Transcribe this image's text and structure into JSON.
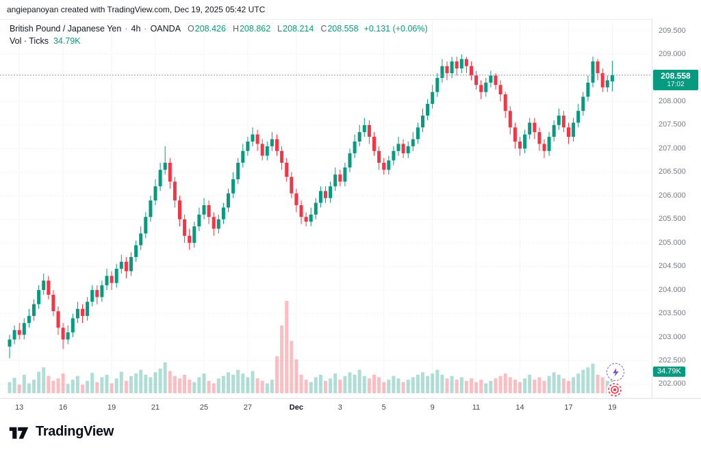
{
  "attribution": "angiepanoyan created with TradingView.com, Dec 19, 2025 05:42 UTC",
  "legend": {
    "title": "British Pound / Japanese Yen",
    "sep": "·",
    "interval": "4h",
    "exchange": "OANDA",
    "o_label": "O",
    "o": "208.426",
    "h_label": "H",
    "h": "208.862",
    "l_label": "L",
    "l": "208.214",
    "c_label": "C",
    "c": "208.558",
    "change": "+0.131 (+0.06%)",
    "vol_label": "Vol · Ticks",
    "vol_value": "34.79K"
  },
  "price_axis": {
    "badge_price": "208.558",
    "badge_time": "17:02",
    "volume_badge": "34.79K"
  },
  "logo": {
    "brand": "TradingView"
  },
  "icons": {
    "bolt_icon": "lightning-bolt",
    "target_icon": "record-target-dot",
    "logo_icon": "tradingview-mark"
  },
  "colors": {
    "up": "#089981",
    "down": "#f23645",
    "vol_up": "rgba(8,153,129,0.32)",
    "vol_down": "rgba(242,54,69,0.32)",
    "badge": "#089981",
    "axis_text": "#787b86",
    "grid": "#e7e9ee",
    "price_line": "#9598a1"
  },
  "chart_data": {
    "type": "candlestick",
    "title": "British Pound / Japanese Yen · 4h · OANDA",
    "symbol": "GBP/JPY",
    "interval": "4h",
    "exchange": "OANDA",
    "legend_position": "top-left",
    "grid": "faint-dotted",
    "y_range": [
      201.75,
      209.75
    ],
    "last_ohlc": {
      "open": 208.426,
      "high": 208.862,
      "low": 208.214,
      "close": 208.558,
      "change": "+0.131",
      "change_pct": "+0.06%"
    },
    "countdown": "17:02",
    "last_volume_label": "34.79K",
    "price_ticks": [
      209.5,
      209.0,
      208.5,
      208.0,
      207.5,
      207.0,
      206.5,
      206.0,
      205.5,
      205.0,
      204.5,
      204.0,
      203.5,
      203.0,
      202.5,
      202.0
    ],
    "time_ticks": [
      {
        "label": "13",
        "i": 2
      },
      {
        "label": "16",
        "i": 11
      },
      {
        "label": "19",
        "i": 21
      },
      {
        "label": "21",
        "i": 30
      },
      {
        "label": "25",
        "i": 40
      },
      {
        "label": "27",
        "i": 49
      },
      {
        "label": "Dec",
        "i": 59,
        "major": true
      },
      {
        "label": "3",
        "i": 68
      },
      {
        "label": "5",
        "i": 77
      },
      {
        "label": "9",
        "i": 87
      },
      {
        "label": "11",
        "i": 96
      },
      {
        "label": "14",
        "i": 105
      },
      {
        "label": "17",
        "i": 115
      },
      {
        "label": "19",
        "i": 124
      }
    ],
    "candles": [
      [
        202.8,
        203.05,
        202.55,
        202.95
      ],
      [
        202.95,
        203.25,
        202.85,
        203.15
      ],
      [
        203.15,
        203.3,
        202.95,
        203.05
      ],
      [
        203.05,
        203.4,
        202.95,
        203.3
      ],
      [
        203.3,
        203.6,
        203.2,
        203.45
      ],
      [
        203.45,
        203.8,
        203.35,
        203.7
      ],
      [
        203.7,
        204.1,
        203.6,
        204.0
      ],
      [
        204.0,
        204.35,
        203.9,
        204.2
      ],
      [
        204.2,
        204.3,
        203.8,
        203.9
      ],
      [
        203.9,
        204.0,
        203.45,
        203.55
      ],
      [
        203.55,
        203.65,
        203.05,
        203.2
      ],
      [
        203.2,
        203.3,
        202.75,
        202.95
      ],
      [
        202.95,
        203.25,
        202.85,
        203.1
      ],
      [
        203.1,
        203.5,
        203.0,
        203.4
      ],
      [
        203.4,
        203.75,
        203.3,
        203.6
      ],
      [
        203.6,
        203.7,
        203.3,
        203.45
      ],
      [
        203.45,
        203.85,
        203.35,
        203.75
      ],
      [
        203.75,
        204.1,
        203.65,
        204.0
      ],
      [
        204.0,
        204.1,
        203.7,
        203.85
      ],
      [
        203.85,
        204.2,
        203.75,
        204.1
      ],
      [
        204.1,
        204.45,
        204.0,
        204.3
      ],
      [
        204.3,
        204.4,
        204.0,
        204.15
      ],
      [
        204.15,
        204.55,
        204.05,
        204.45
      ],
      [
        204.45,
        204.75,
        204.35,
        204.6
      ],
      [
        204.6,
        204.7,
        204.25,
        204.4
      ],
      [
        204.4,
        204.8,
        204.3,
        204.7
      ],
      [
        204.7,
        205.05,
        204.6,
        204.95
      ],
      [
        204.95,
        205.35,
        204.85,
        205.2
      ],
      [
        205.2,
        205.65,
        205.1,
        205.55
      ],
      [
        205.55,
        206.0,
        205.45,
        205.9
      ],
      [
        205.9,
        206.35,
        205.8,
        206.2
      ],
      [
        206.2,
        206.7,
        206.1,
        206.55
      ],
      [
        206.55,
        207.05,
        206.45,
        206.7
      ],
      [
        206.7,
        206.8,
        206.15,
        206.3
      ],
      [
        206.3,
        206.4,
        205.75,
        205.9
      ],
      [
        205.9,
        206.0,
        205.35,
        205.5
      ],
      [
        205.5,
        205.6,
        205.0,
        205.15
      ],
      [
        205.15,
        205.3,
        204.85,
        205.0
      ],
      [
        205.0,
        205.45,
        204.9,
        205.35
      ],
      [
        205.35,
        205.75,
        205.25,
        205.6
      ],
      [
        205.6,
        205.95,
        205.5,
        205.8
      ],
      [
        205.8,
        205.9,
        205.4,
        205.55
      ],
      [
        205.55,
        205.65,
        205.15,
        205.3
      ],
      [
        205.3,
        205.6,
        205.2,
        205.5
      ],
      [
        205.5,
        205.85,
        205.4,
        205.75
      ],
      [
        205.75,
        206.15,
        205.65,
        206.05
      ],
      [
        206.05,
        206.5,
        205.95,
        206.35
      ],
      [
        206.35,
        206.8,
        206.25,
        206.7
      ],
      [
        206.7,
        207.1,
        206.6,
        206.95
      ],
      [
        206.95,
        207.25,
        206.85,
        207.15
      ],
      [
        207.15,
        207.45,
        207.05,
        207.3
      ],
      [
        207.3,
        207.4,
        206.95,
        207.1
      ],
      [
        207.1,
        207.2,
        206.75,
        206.85
      ],
      [
        206.85,
        207.15,
        206.75,
        207.05
      ],
      [
        207.05,
        207.35,
        206.95,
        207.2
      ],
      [
        207.2,
        207.3,
        206.85,
        206.95
      ],
      [
        206.95,
        207.05,
        206.55,
        206.7
      ],
      [
        206.7,
        206.8,
        206.3,
        206.4
      ],
      [
        206.4,
        206.5,
        205.95,
        206.05
      ],
      [
        206.05,
        206.15,
        205.65,
        205.8
      ],
      [
        205.8,
        205.9,
        205.4,
        205.55
      ],
      [
        205.55,
        205.65,
        205.35,
        205.45
      ],
      [
        205.45,
        205.75,
        205.35,
        205.6
      ],
      [
        205.6,
        205.95,
        205.5,
        205.85
      ],
      [
        205.85,
        206.2,
        205.75,
        206.1
      ],
      [
        206.1,
        206.2,
        205.85,
        205.95
      ],
      [
        205.95,
        206.3,
        205.85,
        206.2
      ],
      [
        206.2,
        206.6,
        206.1,
        206.45
      ],
      [
        206.45,
        206.55,
        206.2,
        206.3
      ],
      [
        206.3,
        206.7,
        206.2,
        206.6
      ],
      [
        206.6,
        207.0,
        206.5,
        206.9
      ],
      [
        206.9,
        207.3,
        206.8,
        207.15
      ],
      [
        207.15,
        207.5,
        207.05,
        207.35
      ],
      [
        207.35,
        207.65,
        207.25,
        207.5
      ],
      [
        207.5,
        207.6,
        207.1,
        207.25
      ],
      [
        207.25,
        207.35,
        206.85,
        206.95
      ],
      [
        206.95,
        207.05,
        206.55,
        206.7
      ],
      [
        206.7,
        206.8,
        206.45,
        206.55
      ],
      [
        206.55,
        206.85,
        206.45,
        206.75
      ],
      [
        206.75,
        207.05,
        206.65,
        206.95
      ],
      [
        206.95,
        207.25,
        206.85,
        207.1
      ],
      [
        207.1,
        207.2,
        206.8,
        206.9
      ],
      [
        206.9,
        207.15,
        206.8,
        207.05
      ],
      [
        207.05,
        207.35,
        206.95,
        207.2
      ],
      [
        207.2,
        207.55,
        207.1,
        207.45
      ],
      [
        207.45,
        207.85,
        207.35,
        207.7
      ],
      [
        207.7,
        208.05,
        207.6,
        207.95
      ],
      [
        207.95,
        208.35,
        207.85,
        208.2
      ],
      [
        208.2,
        208.6,
        208.1,
        208.5
      ],
      [
        208.5,
        208.9,
        208.4,
        208.75
      ],
      [
        208.75,
        208.85,
        208.45,
        208.6
      ],
      [
        208.6,
        208.95,
        208.5,
        208.85
      ],
      [
        208.85,
        208.95,
        208.55,
        208.7
      ],
      [
        208.7,
        209.0,
        208.6,
        208.9
      ],
      [
        208.9,
        208.95,
        208.6,
        208.75
      ],
      [
        208.75,
        208.85,
        208.45,
        208.55
      ],
      [
        208.55,
        208.65,
        208.25,
        208.35
      ],
      [
        208.35,
        208.45,
        208.05,
        208.2
      ],
      [
        208.2,
        208.5,
        208.1,
        208.4
      ],
      [
        208.4,
        208.65,
        208.3,
        208.55
      ],
      [
        208.55,
        208.6,
        208.25,
        208.35
      ],
      [
        208.35,
        208.45,
        208.0,
        208.15
      ],
      [
        208.15,
        208.2,
        207.65,
        207.8
      ],
      [
        207.8,
        207.9,
        207.3,
        207.45
      ],
      [
        207.45,
        207.55,
        207.0,
        207.15
      ],
      [
        207.15,
        207.25,
        206.85,
        207.0
      ],
      [
        207.0,
        207.4,
        206.9,
        207.3
      ],
      [
        207.3,
        207.65,
        207.2,
        207.55
      ],
      [
        207.55,
        207.65,
        207.2,
        207.35
      ],
      [
        207.35,
        207.45,
        206.95,
        207.1
      ],
      [
        207.1,
        207.2,
        206.8,
        206.95
      ],
      [
        206.95,
        207.35,
        206.85,
        207.25
      ],
      [
        207.25,
        207.6,
        207.15,
        207.5
      ],
      [
        207.5,
        207.85,
        207.4,
        207.7
      ],
      [
        207.7,
        207.8,
        207.35,
        207.45
      ],
      [
        207.45,
        207.55,
        207.1,
        207.25
      ],
      [
        207.25,
        207.65,
        207.15,
        207.55
      ],
      [
        207.55,
        207.95,
        207.45,
        207.8
      ],
      [
        207.8,
        208.2,
        207.7,
        208.1
      ],
      [
        208.1,
        208.55,
        208.0,
        208.4
      ],
      [
        208.4,
        208.95,
        208.3,
        208.85
      ],
      [
        208.85,
        208.9,
        208.45,
        208.6
      ],
      [
        208.6,
        208.7,
        208.2,
        208.3
      ],
      [
        208.3,
        208.55,
        208.2,
        208.45
      ],
      [
        208.426,
        208.862,
        208.214,
        208.558
      ]
    ],
    "volumes": [
      18,
      25,
      14,
      30,
      16,
      22,
      35,
      42,
      28,
      20,
      24,
      32,
      15,
      22,
      28,
      14,
      20,
      33,
      18,
      26,
      30,
      16,
      24,
      35,
      20,
      28,
      32,
      38,
      30,
      26,
      34,
      40,
      50,
      36,
      28,
      24,
      30,
      22,
      18,
      26,
      32,
      20,
      16,
      24,
      28,
      34,
      30,
      38,
      32,
      26,
      36,
      24,
      20,
      16,
      22,
      60,
      110,
      150,
      85,
      55,
      30,
      22,
      18,
      26,
      30,
      20,
      24,
      32,
      22,
      28,
      34,
      30,
      38,
      28,
      24,
      30,
      26,
      18,
      22,
      28,
      24,
      18,
      22,
      26,
      30,
      34,
      28,
      32,
      38,
      30,
      24,
      28,
      22,
      26,
      20,
      24,
      18,
      22,
      16,
      20,
      24,
      28,
      32,
      26,
      22,
      18,
      24,
      30,
      22,
      26,
      20,
      28,
      34,
      30,
      24,
      20,
      26,
      32,
      38,
      42,
      48,
      30,
      26,
      20,
      34.79
    ]
  }
}
